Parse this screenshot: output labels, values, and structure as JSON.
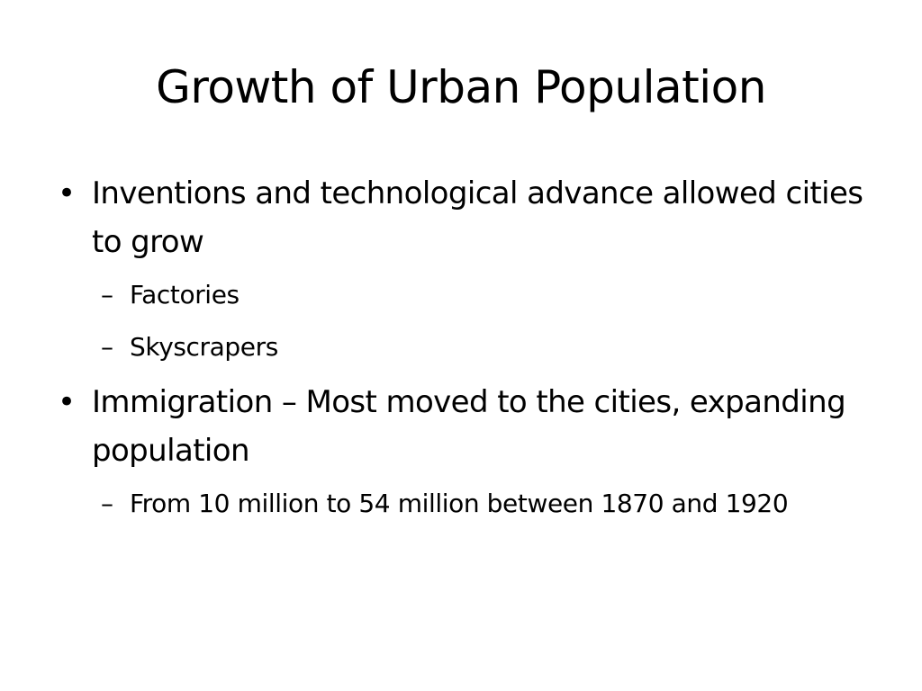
{
  "slide": {
    "title": "Growth of Urban Population",
    "bullets": [
      {
        "text": "Inventions and technological advance allowed cities to grow",
        "subbullets": [
          "Factories",
          "Skyscrapers"
        ]
      },
      {
        "text": "Immigration – Most moved to the cities, expanding population",
        "subbullets": [
          "From 10 million to 54 million between 1870 and 1920"
        ]
      }
    ],
    "bullet_glyph": "•",
    "subbullet_glyph": "–"
  }
}
